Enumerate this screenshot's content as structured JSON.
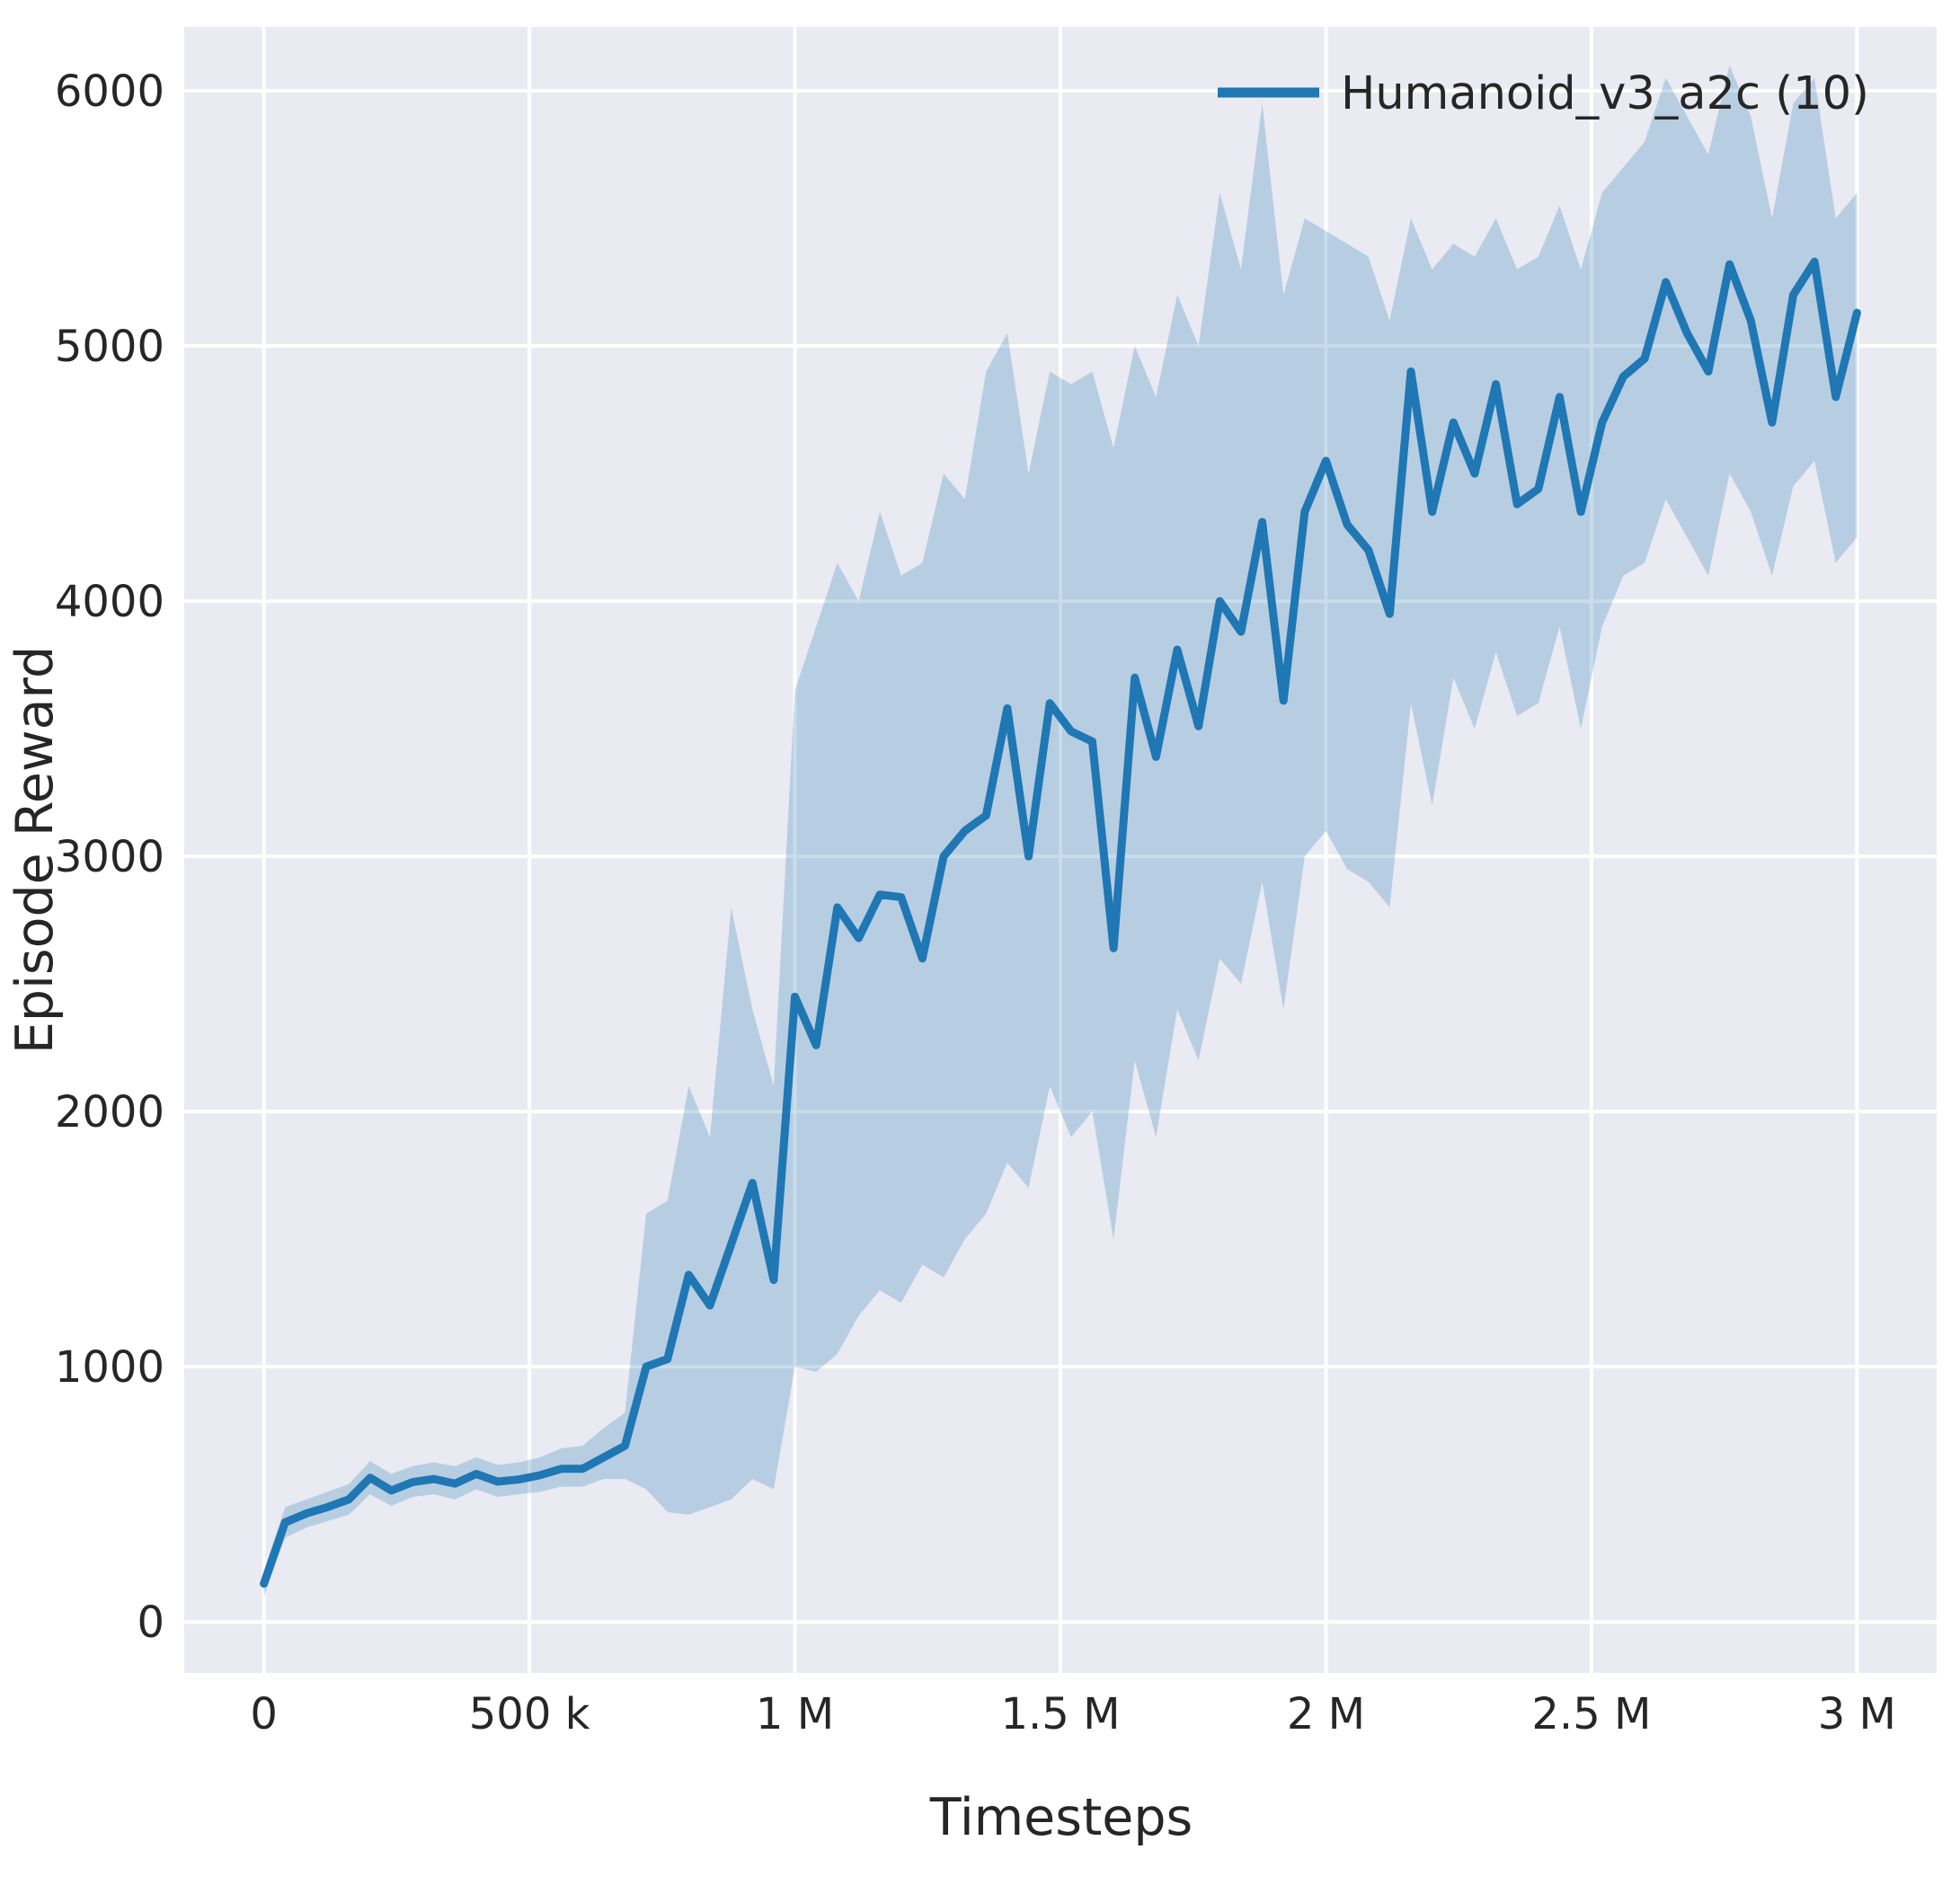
{
  "chart_data": {
    "type": "line",
    "title": "",
    "xlabel": "Timesteps",
    "ylabel": "Episode Reward",
    "xlim": [
      -150000,
      3150000
    ],
    "ylim": [
      -200,
      6250
    ],
    "grid": true,
    "legend_position": "upper right",
    "band_opacity": 0.25,
    "colors": {
      "line": "#1f77b4",
      "band": "#1f77b4",
      "panel_bg": "#eaeaf2",
      "grid": "#ffffff",
      "text": "#262626"
    },
    "xticks": {
      "values": [
        0,
        500000,
        1000000,
        1500000,
        2000000,
        2500000,
        3000000
      ],
      "labels": [
        "0",
        "500 k",
        "1 M",
        "1.5 M",
        "2 M",
        "2.5 M",
        "3 M"
      ]
    },
    "yticks": {
      "values": [
        0,
        1000,
        2000,
        3000,
        4000,
        5000,
        6000
      ],
      "labels": [
        "0",
        "1000",
        "2000",
        "3000",
        "4000",
        "5000",
        "6000"
      ]
    },
    "series": [
      {
        "name": "Humanoid_v3_a2c (10)",
        "x": [
          0,
          40000,
          80000,
          120000,
          160000,
          200000,
          240000,
          280000,
          320000,
          360000,
          400000,
          440000,
          480000,
          520000,
          560000,
          600000,
          640000,
          680000,
          720000,
          760000,
          800000,
          840000,
          880000,
          920000,
          960000,
          1000000,
          1040000,
          1080000,
          1120000,
          1160000,
          1200000,
          1240000,
          1280000,
          1320000,
          1360000,
          1400000,
          1440000,
          1480000,
          1520000,
          1560000,
          1600000,
          1640000,
          1680000,
          1720000,
          1760000,
          1800000,
          1840000,
          1880000,
          1920000,
          1960000,
          2000000,
          2040000,
          2080000,
          2120000,
          2160000,
          2200000,
          2240000,
          2280000,
          2320000,
          2360000,
          2400000,
          2440000,
          2480000,
          2520000,
          2560000,
          2600000,
          2640000,
          2680000,
          2720000,
          2760000,
          2800000,
          2840000,
          2880000,
          2920000,
          2960000,
          3000000
        ],
        "mean": [
          150,
          390,
          425,
          450,
          480,
          565,
          515,
          548,
          560,
          542,
          580,
          550,
          558,
          575,
          600,
          600,
          645,
          690,
          1000,
          1030,
          1360,
          1240,
          1480,
          1720,
          1340,
          2450,
          2260,
          2800,
          2680,
          2850,
          2840,
          2600,
          3000,
          3100,
          3160,
          3580,
          3000,
          3600,
          3490,
          3450,
          2640,
          3700,
          3390,
          3810,
          3510,
          4000,
          3880,
          4310,
          3610,
          4350,
          4550,
          4300,
          4200,
          3950,
          4900,
          4350,
          4700,
          4500,
          4850,
          4380,
          4440,
          4800,
          4350,
          4700,
          4880,
          4950,
          5250,
          5050,
          4900,
          5320,
          5100,
          4700,
          5200,
          5330,
          4800,
          5130
        ],
        "band_lower": [
          100,
          330,
          370,
          395,
          420,
          500,
          455,
          490,
          500,
          480,
          520,
          490,
          500,
          510,
          530,
          530,
          560,
          560,
          520,
          430,
          420,
          450,
          480,
          560,
          520,
          1000,
          980,
          1050,
          1200,
          1300,
          1250,
          1400,
          1350,
          1500,
          1600,
          1800,
          1700,
          2100,
          1900,
          2000,
          1500,
          2200,
          1900,
          2400,
          2200,
          2600,
          2500,
          2900,
          2400,
          3000,
          3100,
          2950,
          2900,
          2800,
          3600,
          3200,
          3700,
          3500,
          3800,
          3550,
          3600,
          3900,
          3500,
          3900,
          4100,
          4150,
          4400,
          4250,
          4100,
          4500,
          4350,
          4100,
          4450,
          4550,
          4150,
          4250
        ],
        "band_upper": [
          200,
          450,
          480,
          510,
          540,
          630,
          580,
          610,
          625,
          610,
          645,
          615,
          625,
          645,
          680,
          690,
          760,
          820,
          1600,
          1650,
          2100,
          1900,
          2800,
          2400,
          2100,
          3650,
          3900,
          4150,
          4000,
          4350,
          4100,
          4150,
          4500,
          4400,
          4900,
          5050,
          4500,
          4900,
          4850,
          4900,
          4600,
          5000,
          4800,
          5200,
          5000,
          5600,
          5300,
          5950,
          5200,
          5500,
          5450,
          5400,
          5350,
          5100,
          5500,
          5300,
          5400,
          5350,
          5500,
          5300,
          5350,
          5550,
          5300,
          5600,
          5700,
          5800,
          6050,
          5900,
          5750,
          6100,
          5900,
          5500,
          5950,
          6050,
          5500,
          5600
        ]
      }
    ]
  }
}
